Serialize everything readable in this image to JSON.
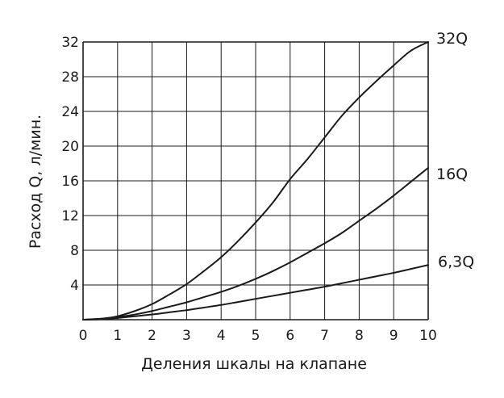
{
  "chart_data": {
    "type": "line",
    "xlabel": "Деления шкалы на клапане",
    "ylabel": "Расход Q, л/мин.",
    "xlim": [
      0,
      10
    ],
    "ylim": [
      0,
      32
    ],
    "x_ticks": [
      0,
      1,
      2,
      3,
      4,
      5,
      6,
      7,
      8,
      9,
      10
    ],
    "x_tick_labels": [
      "0",
      "1",
      "2",
      "3",
      "4",
      "5",
      "6",
      "7",
      "8",
      "9",
      "10"
    ],
    "y_ticks": [
      4,
      8,
      12,
      16,
      20,
      24,
      28,
      32
    ],
    "y_tick_labels": [
      "4",
      "8",
      "12",
      "16",
      "20",
      "24",
      "28",
      "32"
    ],
    "grid": true,
    "line_color": "#1a1a1a",
    "series": [
      {
        "name": "32Q",
        "x": [
          0,
          0.5,
          1,
          1.5,
          2,
          2.5,
          3,
          3.5,
          4,
          4.5,
          5,
          5.5,
          6,
          6.5,
          7,
          7.5,
          8,
          8.5,
          9,
          9.5,
          10
        ],
        "y": [
          0,
          0.1,
          0.4,
          1.0,
          1.8,
          2.9,
          4.1,
          5.6,
          7.2,
          9.1,
          11.2,
          13.5,
          16.2,
          18.5,
          21.0,
          23.5,
          25.6,
          27.5,
          29.3,
          31.0,
          32.0
        ]
      },
      {
        "name": "16Q",
        "x": [
          0,
          0.5,
          1,
          1.5,
          2,
          2.5,
          3,
          3.5,
          4,
          4.5,
          5,
          5.5,
          6,
          6.5,
          7,
          7.5,
          8,
          8.5,
          9,
          9.5,
          10
        ],
        "y": [
          0,
          0.1,
          0.3,
          0.6,
          1.0,
          1.5,
          2.0,
          2.6,
          3.2,
          3.9,
          4.7,
          5.6,
          6.6,
          7.7,
          8.8,
          10.0,
          11.4,
          12.8,
          14.3,
          15.9,
          17.5
        ]
      },
      {
        "name": "6,3Q",
        "x": [
          0,
          0.5,
          1,
          1.5,
          2,
          2.5,
          3,
          3.5,
          4,
          4.5,
          5,
          5.5,
          6,
          6.5,
          7,
          7.5,
          8,
          8.5,
          9,
          9.5,
          10
        ],
        "y": [
          0,
          0.05,
          0.2,
          0.4,
          0.6,
          0.85,
          1.1,
          1.4,
          1.7,
          2.05,
          2.4,
          2.75,
          3.1,
          3.45,
          3.8,
          4.2,
          4.6,
          5.0,
          5.4,
          5.85,
          6.3
        ]
      }
    ]
  }
}
